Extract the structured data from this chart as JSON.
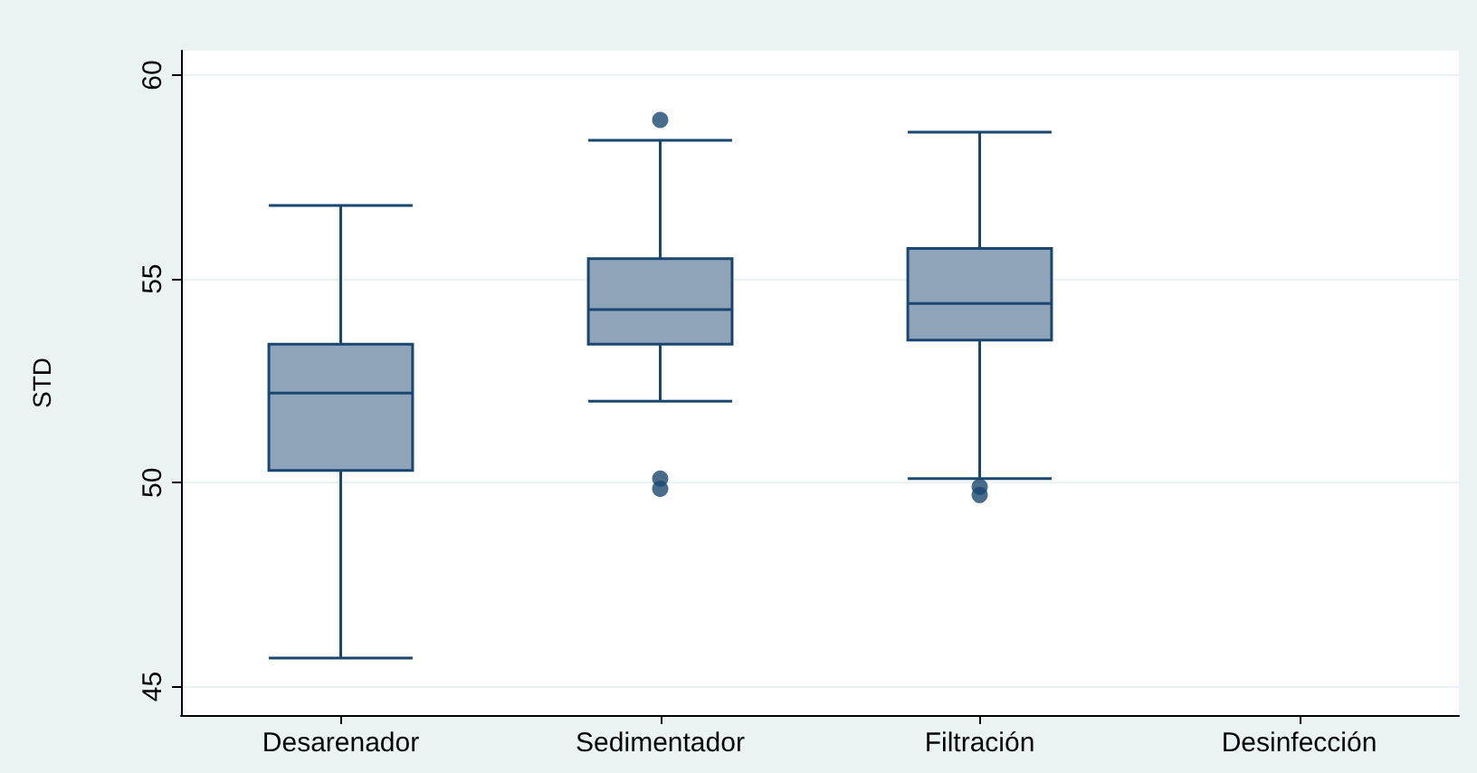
{
  "chart_data": {
    "type": "box",
    "ylabel": "STD",
    "categories": [
      "Desarenador",
      "Sedimentador",
      "Filtración",
      "Desinfección"
    ],
    "boxes": [
      {
        "low": 45.7,
        "q1": 50.3,
        "median": 52.2,
        "q3": 53.4,
        "high": 56.8
      },
      {
        "low": 52.0,
        "q1": 53.4,
        "median": 54.25,
        "q3": 55.5,
        "high": 58.4,
        "outliers": [
          58.9,
          50.1,
          49.85
        ]
      },
      {
        "low": 50.1,
        "q1": 53.5,
        "median": 54.4,
        "q3": 55.75,
        "high": 58.6,
        "outliers": [
          49.9,
          49.7
        ]
      },
      null
    ],
    "color": "#8fa3b9",
    "ylim": [
      44.3,
      60.6
    ],
    "yticks": [
      45,
      50,
      55,
      60
    ],
    "grid": "y"
  }
}
